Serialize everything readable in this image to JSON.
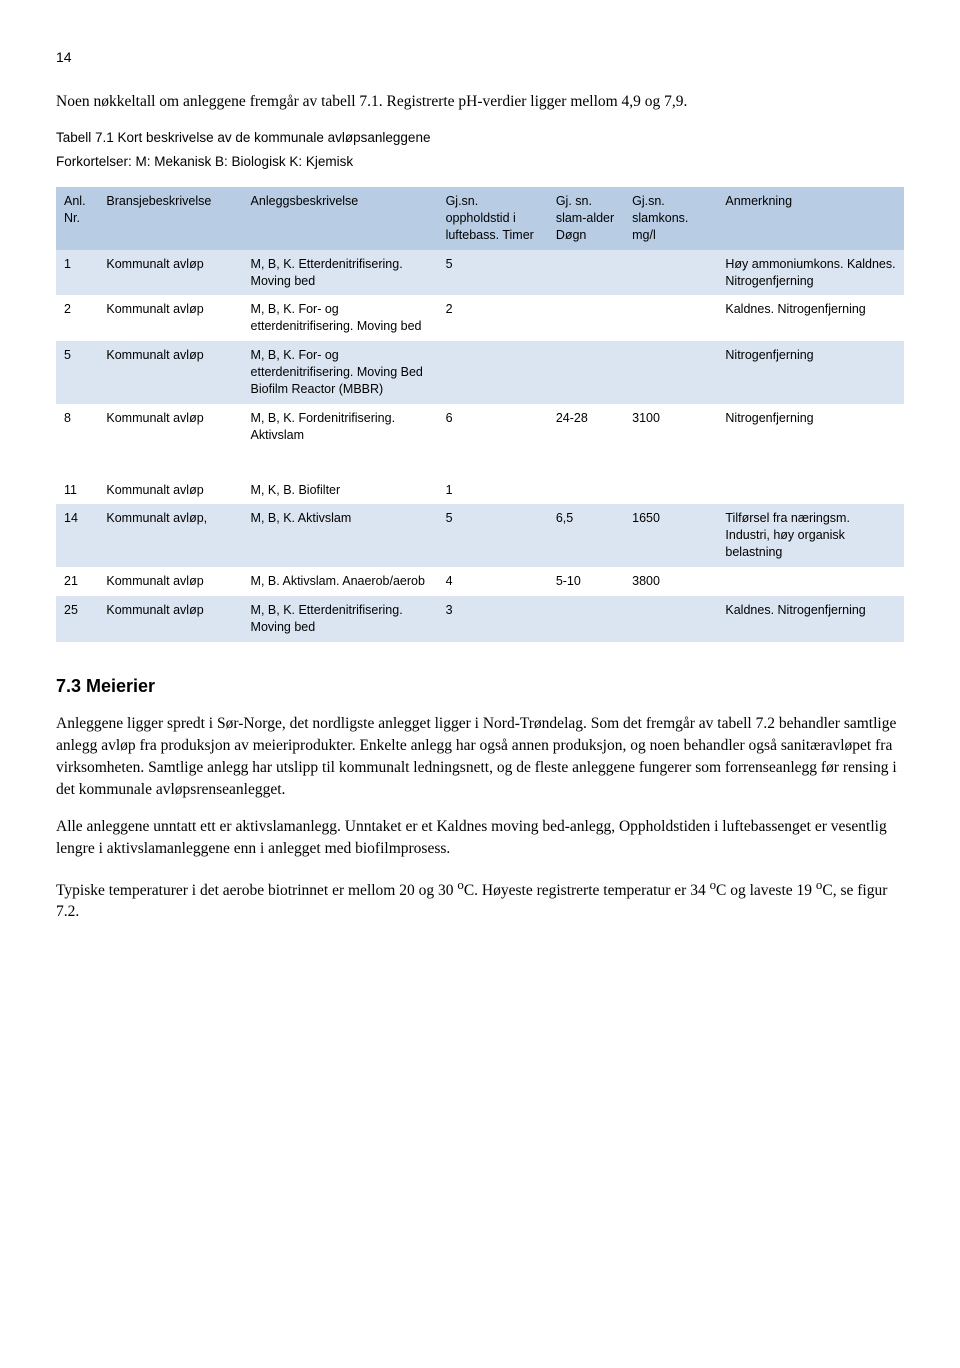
{
  "page_number": "14",
  "intro_para": "Noen nøkkeltall om anleggene fremgår av tabell 7.1. Registrerte pH-verdier ligger mellom 4,9 og 7,9.",
  "table_title": "Tabell 7.1 Kort beskrivelse av de kommunale avløpsanleggene",
  "table_abbrev": "Forkortelser: M: Mekanisk B: Biologisk K: Kjemisk",
  "columns": {
    "nr": "Anl. Nr.",
    "bransje": "Bransjebeskrivelse",
    "anlegg": "Anleggsbeskrivelse",
    "timer": "Gj.sn. oppholdstid i luftebass. Timer",
    "slam": "Gj. sn. slam-alder Døgn",
    "mgl": "Gj.sn. slamkons. mg/l",
    "anm": "Anmerkning"
  },
  "rows_a": [
    {
      "nr": "1",
      "bransje": "Kommunalt avløp",
      "anlegg": "M, B, K. Etterdenitrifisering. Moving bed",
      "timer": "5",
      "slam": "",
      "mgl": "",
      "anm": "Høy ammoniumkons. Kaldnes. Nitrogenfjerning"
    },
    {
      "nr": "2",
      "bransje": "Kommunalt avløp",
      "anlegg": "M, B, K. For- og etterdenitrifisering. Moving bed",
      "timer": "2",
      "slam": "",
      "mgl": "",
      "anm": "Kaldnes. Nitrogenfjerning"
    },
    {
      "nr": "5",
      "bransje": "Kommunalt avløp",
      "anlegg": "M, B, K. For- og etterdenitrifisering. Moving Bed Biofilm Reactor (MBBR)",
      "timer": "",
      "slam": "",
      "mgl": "",
      "anm": "Nitrogenfjerning"
    },
    {
      "nr": "8",
      "bransje": "Kommunalt avløp",
      "anlegg": "M, B, K. Fordenitrifisering. Aktivslam",
      "timer": "6",
      "slam": "24-28",
      "mgl": "3100",
      "anm": "Nitrogenfjerning"
    }
  ],
  "rows_b": [
    {
      "nr": "11",
      "bransje": "Kommunalt avløp",
      "anlegg": "M, K, B. Biofilter",
      "timer": "1",
      "slam": "",
      "mgl": "",
      "anm": ""
    },
    {
      "nr": "14",
      "bransje": "Kommunalt avløp,",
      "anlegg": "M, B, K. Aktivslam",
      "timer": "5",
      "slam": "6,5",
      "mgl": "1650",
      "anm": "Tilførsel fra næringsm. Industri, høy organisk belastning"
    },
    {
      "nr": "21",
      "bransje": "Kommunalt avløp",
      "anlegg": "M, B. Aktivslam. Anaerob/aerob",
      "timer": "4",
      "slam": " 5-10",
      "mgl": "3800",
      "anm": ""
    },
    {
      "nr": "25",
      "bransje": "Kommunalt avløp",
      "anlegg": "M, B, K. Etterdenitrifisering. Moving bed",
      "timer": "3",
      "slam": "",
      "mgl": "",
      "anm": "Kaldnes. Nitrogenfjerning"
    }
  ],
  "section_heading": "7.3 Meierier",
  "body_p1": "Anleggene ligger spredt i Sør-Norge, det nordligste anlegget ligger i Nord-Trøndelag. Som det fremgår av tabell 7.2 behandler samtlige anlegg avløp fra produksjon av meieriprodukter. Enkelte anlegg har også annen produksjon, og noen behandler også sanitæravløpet fra virksomheten. Samtlige anlegg har utslipp til kommunalt ledningsnett, og de fleste anleggene fungerer som forrenseanlegg før rensing i det kommunale avløpsrenseanlegget.",
  "body_p2": "Alle anleggene unntatt ett er aktivslamanlegg. Unntaket er et Kaldnes moving bed-anlegg, Oppholdstiden i luftebassenget er vesentlig lengre i aktivslamanleggene enn i anlegget med biofilmprosess.",
  "body_p3_a": "Typiske temperaturer i det aerobe biotrinnet er mellom 20 og 30 ",
  "body_p3_b": "C. Høyeste registrerte temperatur er 34 ",
  "body_p3_c": "C og laveste 19 ",
  "body_p3_d": "C, se figur 7.2.",
  "deg_sup": "o"
}
